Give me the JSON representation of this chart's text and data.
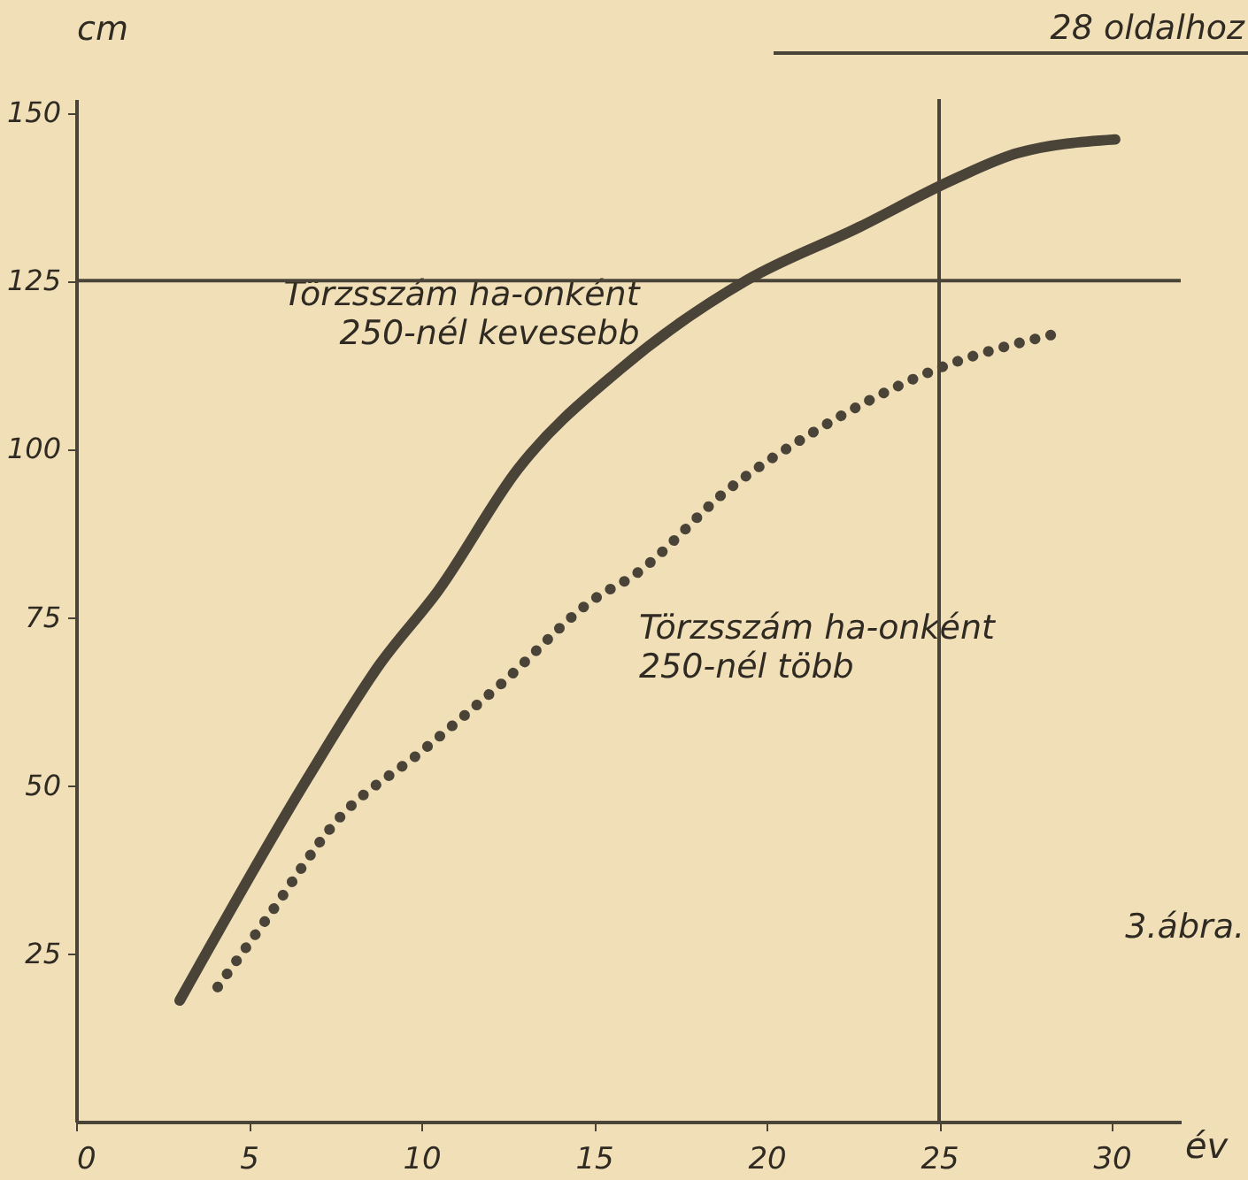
{
  "chart_data": {
    "type": "line",
    "xlabel": "év",
    "ylabel": "cm",
    "xlim": [
      0,
      32
    ],
    "ylim": [
      0,
      152
    ],
    "xticks": [
      0,
      5,
      10,
      15,
      20,
      25,
      30
    ],
    "yticks": [
      25,
      50,
      75,
      100,
      125,
      150
    ],
    "grid": false,
    "marker": "none",
    "series": [
      {
        "name": "Törzsszám ha-onként 250-nél kevesebb",
        "color": "#4a4438",
        "line_style": "solid",
        "x": [
          3.0,
          6.7,
          8.8,
          10.5,
          12.8,
          15.8,
          19.4,
          22.7,
          25.4,
          27.3,
          30.1
        ],
        "values": [
          18,
          51,
          68,
          79,
          97,
          112,
          125,
          133,
          140,
          144,
          146
        ]
      },
      {
        "name": "Törzsszám ha-onként 250-nél több",
        "color": "#4a4438",
        "line_style": "dotted",
        "x": [
          4.1,
          5.5,
          7.6,
          10.0,
          12.3,
          15.1,
          16.1,
          18.9,
          21.2,
          25.0,
          28.3
        ],
        "values": [
          20,
          30,
          45,
          55,
          65,
          78,
          81,
          94,
          102,
          112,
          117
        ]
      }
    ],
    "ref_lines": [
      {
        "axis": "y",
        "value": 125,
        "color": "#4a4438"
      },
      {
        "axis": "x",
        "value": 25,
        "color": "#4a4438"
      }
    ],
    "annotations": [
      "28 oldalhoz",
      "3.ábra."
    ]
  }
}
